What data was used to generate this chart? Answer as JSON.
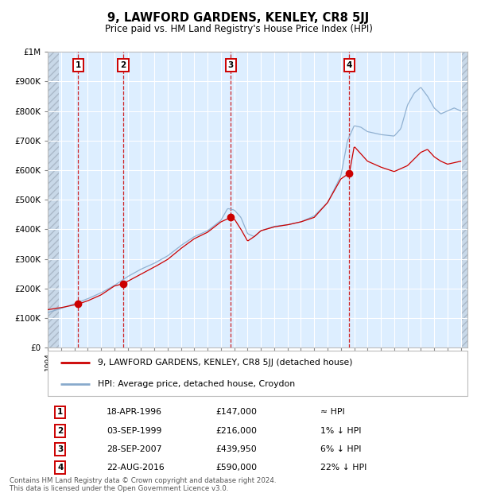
{
  "title": "9, LAWFORD GARDENS, KENLEY, CR8 5JJ",
  "subtitle": "Price paid vs. HM Land Registry's House Price Index (HPI)",
  "legend_line1": "9, LAWFORD GARDENS, KENLEY, CR8 5JJ (detached house)",
  "legend_line2": "HPI: Average price, detached house, Croydon",
  "footer": "Contains HM Land Registry data © Crown copyright and database right 2024.\nThis data is licensed under the Open Government Licence v3.0.",
  "sale_dates": [
    1996.29,
    1999.67,
    2007.74,
    2016.64
  ],
  "sale_prices": [
    147000,
    216000,
    439950,
    590000
  ],
  "sale_labels": [
    "1",
    "2",
    "3",
    "4"
  ],
  "sale_date_strs": [
    "18-APR-1996",
    "03-SEP-1999",
    "28-SEP-2007",
    "22-AUG-2016"
  ],
  "sale_price_strs": [
    "£147,000",
    "£216,000",
    "£439,950",
    "£590,000"
  ],
  "sale_hpi_strs": [
    "≈ HPI",
    "1% ↓ HPI",
    "6% ↓ HPI",
    "22% ↓ HPI"
  ],
  "red_line_color": "#cc0000",
  "blue_line_color": "#88aacc",
  "dot_color": "#cc0000",
  "dashed_color": "#cc0000",
  "bg_color": "#ddeeff",
  "hatch_color": "#c8d8e8",
  "grid_color": "#ffffff",
  "border_color": "#bbbbbb",
  "ylim": [
    0,
    1000000
  ],
  "xlim_start": 1994.0,
  "xlim_end": 2025.5,
  "hpi_anchors_x": [
    1994,
    1995,
    1996,
    1997,
    1998,
    1999,
    2000,
    2001,
    2002,
    2003,
    2004,
    2005,
    2006,
    2007,
    2007.5,
    2008,
    2008.5,
    2009,
    2009.5,
    2010,
    2011,
    2012,
    2013,
    2014,
    2015,
    2016,
    2016.5,
    2017,
    2017.5,
    2018,
    2019,
    2020,
    2020.5,
    2021,
    2021.5,
    2022,
    2022.5,
    2023,
    2023.5,
    2024,
    2024.5,
    2025
  ],
  "hpi_anchors_y": [
    118000,
    132000,
    148000,
    165000,
    185000,
    210000,
    240000,
    265000,
    285000,
    310000,
    345000,
    375000,
    395000,
    430000,
    470000,
    465000,
    440000,
    385000,
    375000,
    395000,
    410000,
    415000,
    425000,
    445000,
    490000,
    580000,
    700000,
    750000,
    745000,
    730000,
    720000,
    715000,
    740000,
    820000,
    860000,
    880000,
    850000,
    810000,
    790000,
    800000,
    810000,
    800000
  ],
  "red_anchors_x": [
    1994,
    1995,
    1996,
    1996.29,
    1997,
    1998,
    1999,
    1999.67,
    2001,
    2002,
    2003,
    2004,
    2005,
    2006,
    2007,
    2007.74,
    2008,
    2008.5,
    2009,
    2009.5,
    2010,
    2011,
    2012,
    2013,
    2014,
    2015,
    2016,
    2016.64,
    2017,
    2018,
    2019,
    2020,
    2021,
    2022,
    2022.5,
    2023,
    2023.5,
    2024,
    2024.5,
    2025
  ],
  "red_anchors_y": [
    128000,
    135000,
    144000,
    147000,
    158000,
    178000,
    208000,
    216000,
    248000,
    272000,
    298000,
    335000,
    368000,
    390000,
    425000,
    439950,
    435000,
    400000,
    360000,
    375000,
    395000,
    408000,
    415000,
    425000,
    440000,
    490000,
    570000,
    590000,
    680000,
    630000,
    610000,
    595000,
    615000,
    660000,
    670000,
    645000,
    630000,
    620000,
    625000,
    630000
  ]
}
